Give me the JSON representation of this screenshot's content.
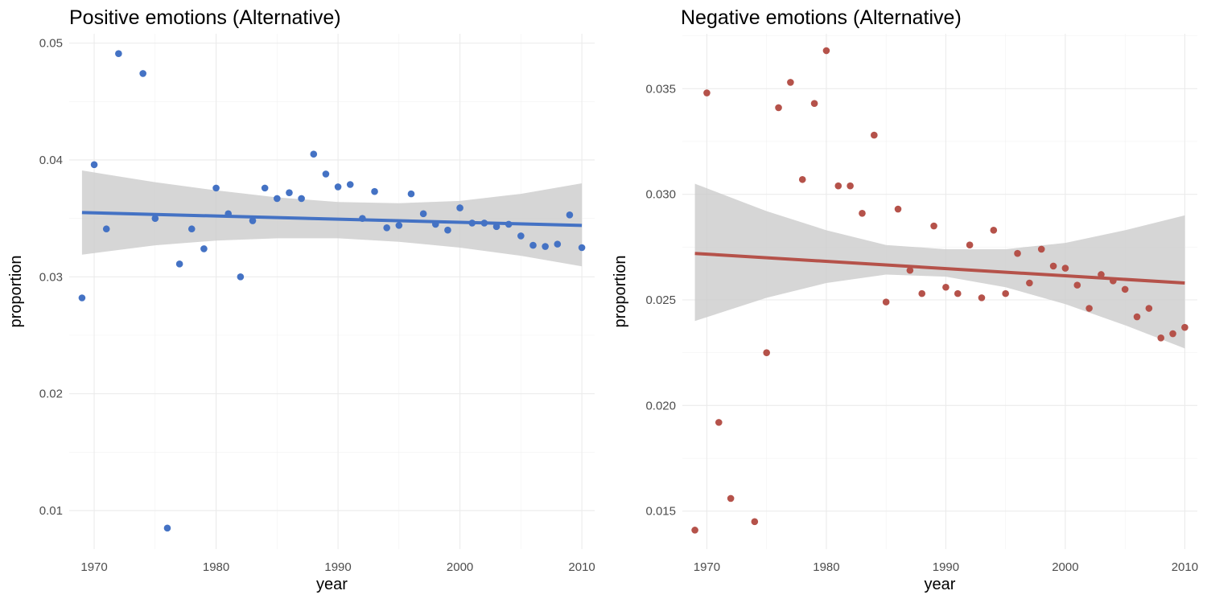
{
  "chart_data": [
    {
      "type": "scatter",
      "title": "Positive emotions (Alternative)",
      "xlabel": "year",
      "ylabel": "proportion",
      "xlim": [
        1967.95,
        2011.05
      ],
      "ylim": [
        0.0067,
        0.0508
      ],
      "xticks": [
        1970,
        1980,
        1990,
        2000,
        2010
      ],
      "xtick_labels": [
        "1970",
        "1980",
        "1990",
        "2000",
        "2010"
      ],
      "yticks": [
        0.01,
        0.02,
        0.03,
        0.04,
        0.05
      ],
      "ytick_labels": [
        "0.01",
        "0.02",
        "0.03",
        "0.04",
        "0.05"
      ],
      "grid": true,
      "point_color": "#4472c4",
      "line_color": "#4472c4",
      "band_color": "#cccccc",
      "x": [
        1969,
        1970,
        1971,
        1972,
        1974,
        1975,
        1976,
        1977,
        1978,
        1979,
        1980,
        1981,
        1982,
        1983,
        1984,
        1985,
        1986,
        1987,
        1988,
        1989,
        1990,
        1991,
        1992,
        1993,
        1994,
        1995,
        1996,
        1997,
        1998,
        1999,
        2000,
        2001,
        2002,
        2003,
        2004,
        2005,
        2006,
        2007,
        2008,
        2009,
        2010
      ],
      "y": [
        0.0282,
        0.0396,
        0.0341,
        0.0491,
        0.0474,
        0.035,
        0.0085,
        0.0311,
        0.0341,
        0.0324,
        0.0376,
        0.0354,
        0.03,
        0.0348,
        0.0376,
        0.0367,
        0.0372,
        0.0367,
        0.0405,
        0.0388,
        0.0377,
        0.0379,
        0.035,
        0.0373,
        0.0342,
        0.0344,
        0.0371,
        0.0354,
        0.0345,
        0.034,
        0.0359,
        0.0346,
        0.0346,
        0.0343,
        0.0345,
        0.0335,
        0.0327,
        0.0326,
        0.0328,
        0.0353,
        0.0325
      ],
      "trend": {
        "x": [
          1969,
          2010
        ],
        "y": [
          0.0355,
          0.0344
        ]
      },
      "ci_band": {
        "x": [
          1969,
          1975,
          1980,
          1985,
          1990,
          1995,
          2000,
          2005,
          2010
        ],
        "lower": [
          0.0319,
          0.0327,
          0.0331,
          0.0333,
          0.0333,
          0.033,
          0.0325,
          0.0318,
          0.0309
        ],
        "upper": [
          0.0391,
          0.0381,
          0.0374,
          0.0368,
          0.0364,
          0.0363,
          0.0365,
          0.0371,
          0.038
        ]
      }
    },
    {
      "type": "scatter",
      "title": "Negative emotions (Alternative)",
      "xlabel": "year",
      "ylabel": "proportion",
      "xlim": [
        1967.95,
        2011.05
      ],
      "ylim": [
        0.0132,
        0.0376
      ],
      "xticks": [
        1970,
        1980,
        1990,
        2000,
        2010
      ],
      "xtick_labels": [
        "1970",
        "1980",
        "1990",
        "2000",
        "2010"
      ],
      "yticks": [
        0.015,
        0.02,
        0.025,
        0.03,
        0.035
      ],
      "ytick_labels": [
        "0.015",
        "0.020",
        "0.025",
        "0.030",
        "0.035"
      ],
      "grid": true,
      "point_color": "#b5524a",
      "line_color": "#b5524a",
      "band_color": "#cccccc",
      "x": [
        1969,
        1970,
        1971,
        1972,
        1974,
        1975,
        1976,
        1977,
        1978,
        1979,
        1980,
        1981,
        1982,
        1983,
        1984,
        1985,
        1986,
        1987,
        1988,
        1989,
        1990,
        1991,
        1992,
        1993,
        1994,
        1995,
        1996,
        1997,
        1998,
        1999,
        2000,
        2001,
        2002,
        2003,
        2004,
        2005,
        2006,
        2007,
        2008,
        2009,
        2010
      ],
      "y": [
        0.0141,
        0.0348,
        0.0192,
        0.0156,
        0.0145,
        0.0225,
        0.0341,
        0.0353,
        0.0307,
        0.0343,
        0.0368,
        0.0304,
        0.0304,
        0.0291,
        0.0328,
        0.0249,
        0.0293,
        0.0264,
        0.0253,
        0.0285,
        0.0256,
        0.0253,
        0.0276,
        0.0251,
        0.0283,
        0.0253,
        0.0272,
        0.0258,
        0.0274,
        0.0266,
        0.0265,
        0.0257,
        0.0246,
        0.0262,
        0.0259,
        0.0255,
        0.0242,
        0.0246,
        0.0232,
        0.0234,
        0.0237
      ],
      "trend": {
        "x": [
          1969,
          2010
        ],
        "y": [
          0.0272,
          0.0258
        ]
      },
      "ci_band": {
        "x": [
          1969,
          1975,
          1980,
          1985,
          1990,
          1995,
          2000,
          2005,
          2010
        ],
        "lower": [
          0.024,
          0.0251,
          0.0258,
          0.0262,
          0.0261,
          0.0256,
          0.0248,
          0.0238,
          0.0227
        ],
        "upper": [
          0.0305,
          0.0292,
          0.0283,
          0.0276,
          0.0274,
          0.0274,
          0.0277,
          0.0283,
          0.029
        ]
      }
    }
  ]
}
